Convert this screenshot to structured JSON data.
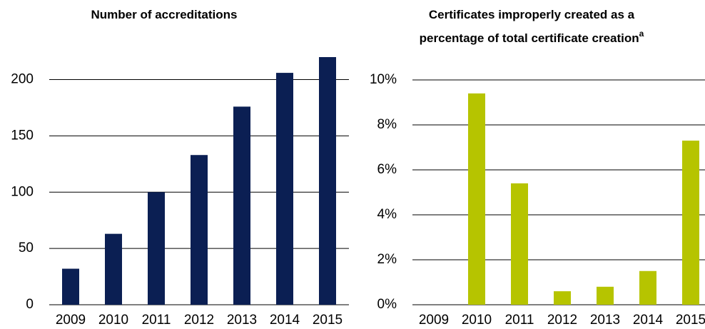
{
  "chart_data": [
    {
      "type": "bar",
      "title": [
        "Number of accreditations"
      ],
      "categories": [
        "2009",
        "2010",
        "2011",
        "2012",
        "2013",
        "2014",
        "2015"
      ],
      "values": [
        32,
        63,
        100,
        133,
        176,
        206,
        220
      ],
      "color": "#0b1f53",
      "ylim": [
        0,
        220
      ],
      "yticks": [
        0,
        50,
        100,
        150,
        200
      ],
      "grid": true
    },
    {
      "type": "bar",
      "title": [
        "Certificates improperly created as a",
        "percentage of total certificate creation"
      ],
      "title_superscript": "a",
      "categories": [
        "2009",
        "2010",
        "2011",
        "2012",
        "2013",
        "2014",
        "2015"
      ],
      "values": [
        0,
        9.4,
        5.4,
        0.6,
        0.8,
        1.5,
        7.3
      ],
      "color": "#b6c400",
      "ylim": [
        0,
        10
      ],
      "yticks": [
        {
          "value": 0,
          "label": "0%"
        },
        {
          "value": 2,
          "label": "2%"
        },
        {
          "value": 4,
          "label": "4%"
        },
        {
          "value": 6,
          "label": "6%"
        },
        {
          "value": 8,
          "label": "8%"
        },
        {
          "value": 10,
          "label": "10%"
        }
      ],
      "grid": true
    }
  ]
}
